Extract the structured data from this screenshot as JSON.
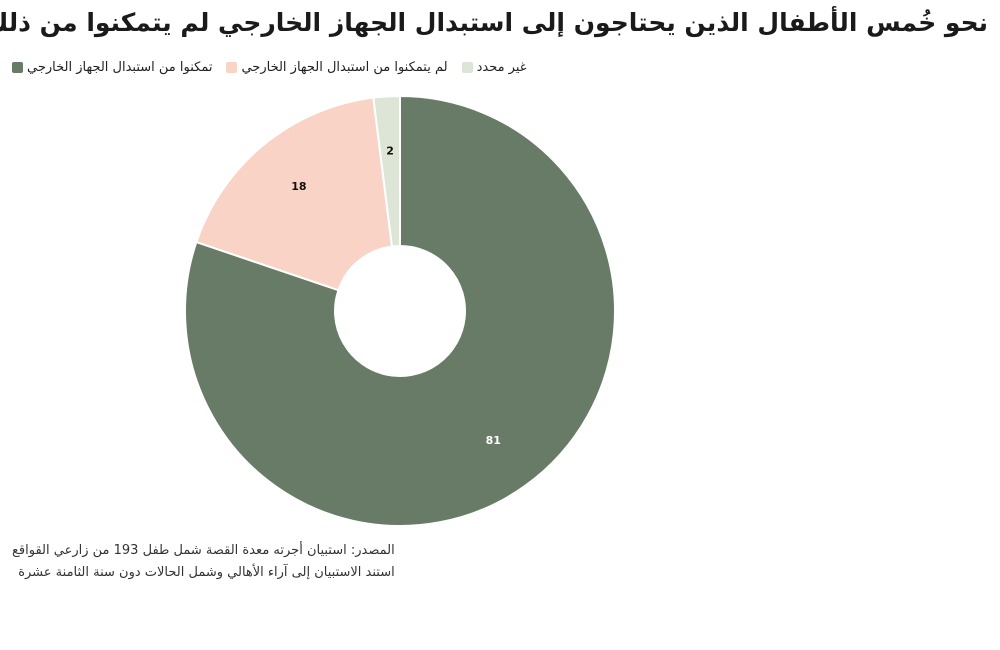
{
  "title": "نحو خُمس الأطفال الذين يحتاجون إلى استبدال الجهاز الخارجي لم يتمكنوا من ذلك",
  "source_line1": "المصدر: استبيان أجرته معدة القصة شمل طفل 193 من زارعي القواقع",
  "source_line2": "استند الاستبيان إلى آراء الأهالي وشمل الحالات دون سنة الثامنة عشرة",
  "chart_data": {
    "type": "pie",
    "title": "نحو خُمس الأطفال الذين يحتاجون إلى استبدال الجهاز الخارجي لم يتمكنوا من ذلك",
    "donut": true,
    "legend_position": "top-left",
    "slices": [
      {
        "label": "تمكنوا من استبدال الجهاز الخارجي",
        "value": 81,
        "color": "#677b67",
        "label_color": "#ffffff"
      },
      {
        "label": "لم يتمكنوا من استبدال الجهاز الخارجي",
        "value": 18,
        "color": "#f9d3c6",
        "label_color": "#111111"
      },
      {
        "label": "غير محدد",
        "value": 2,
        "color": "#dde6d6",
        "label_color": "#111111"
      }
    ]
  }
}
